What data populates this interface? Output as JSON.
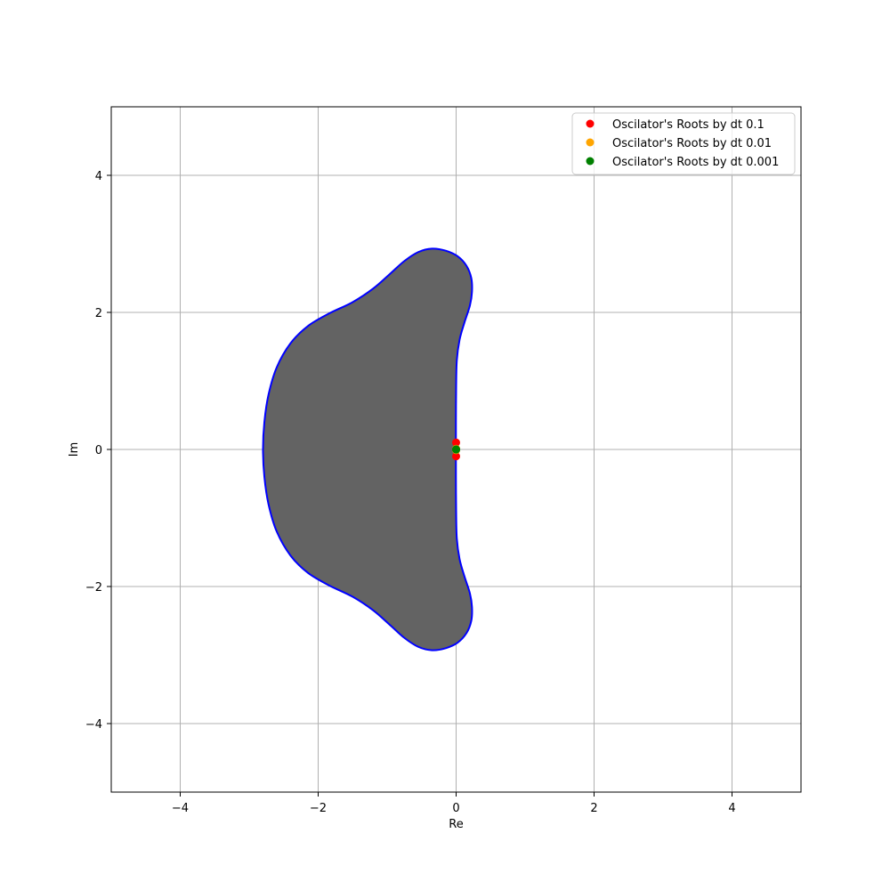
{
  "chart_data": {
    "type": "scatter",
    "xlabel": "Re",
    "ylabel": "Im",
    "xlim": [
      -5,
      5
    ],
    "ylim": [
      -5,
      5
    ],
    "x_ticks": [
      -4,
      -2,
      0,
      2,
      4
    ],
    "y_ticks": [
      -4,
      -2,
      0,
      2,
      4
    ],
    "x_tick_labels": [
      "−4",
      "−2",
      "0",
      "2",
      "4"
    ],
    "y_tick_labels": [
      "−4",
      "−2",
      "0",
      "2",
      "4"
    ],
    "grid": true,
    "legend_position": "top-right",
    "stability_region": {
      "fill_color": "#636363",
      "edge_color": "#0000ff",
      "boundary": [
        [
          -0.003,
          0.0
        ],
        [
          -0.003,
          0.4
        ],
        [
          0.0,
          0.9
        ],
        [
          0.01,
          1.3
        ],
        [
          0.05,
          1.6
        ],
        [
          0.12,
          1.85
        ],
        [
          0.2,
          2.1
        ],
        [
          0.23,
          2.3
        ],
        [
          0.22,
          2.5
        ],
        [
          0.15,
          2.68
        ],
        [
          0.02,
          2.82
        ],
        [
          -0.15,
          2.9
        ],
        [
          -0.35,
          2.93
        ],
        [
          -0.55,
          2.88
        ],
        [
          -0.75,
          2.75
        ],
        [
          -0.95,
          2.57
        ],
        [
          -1.2,
          2.35
        ],
        [
          -1.5,
          2.15
        ],
        [
          -1.85,
          1.98
        ],
        [
          -2.15,
          1.8
        ],
        [
          -2.4,
          1.55
        ],
        [
          -2.6,
          1.2
        ],
        [
          -2.72,
          0.8
        ],
        [
          -2.78,
          0.4
        ],
        [
          -2.8,
          0.0
        ],
        [
          -2.78,
          -0.4
        ],
        [
          -2.72,
          -0.8
        ],
        [
          -2.6,
          -1.2
        ],
        [
          -2.4,
          -1.55
        ],
        [
          -2.15,
          -1.8
        ],
        [
          -1.85,
          -1.98
        ],
        [
          -1.5,
          -2.15
        ],
        [
          -1.2,
          -2.35
        ],
        [
          -0.95,
          -2.57
        ],
        [
          -0.75,
          -2.75
        ],
        [
          -0.55,
          -2.88
        ],
        [
          -0.35,
          -2.93
        ],
        [
          -0.15,
          -2.9
        ],
        [
          0.02,
          -2.82
        ],
        [
          0.15,
          -2.68
        ],
        [
          0.22,
          -2.5
        ],
        [
          0.23,
          -2.3
        ],
        [
          0.2,
          -2.1
        ],
        [
          0.12,
          -1.85
        ],
        [
          0.05,
          -1.6
        ],
        [
          0.01,
          -1.3
        ],
        [
          0.0,
          -0.9
        ],
        [
          -0.003,
          -0.4
        ]
      ]
    },
    "series": [
      {
        "name": "Oscilator's Roots by dt 0.1",
        "color": "#ff0000",
        "points": [
          [
            0.0,
            0.1
          ],
          [
            0.0,
            -0.1
          ]
        ]
      },
      {
        "name": "Oscilator's Roots by dt 0.01",
        "color": "#ffa500",
        "points": [
          [
            0.0,
            0.01
          ],
          [
            0.0,
            -0.01
          ]
        ]
      },
      {
        "name": "Oscilator's Roots by dt 0.001",
        "color": "#008000",
        "points": [
          [
            0.0,
            0.001
          ],
          [
            0.0,
            -0.001
          ]
        ]
      }
    ]
  }
}
